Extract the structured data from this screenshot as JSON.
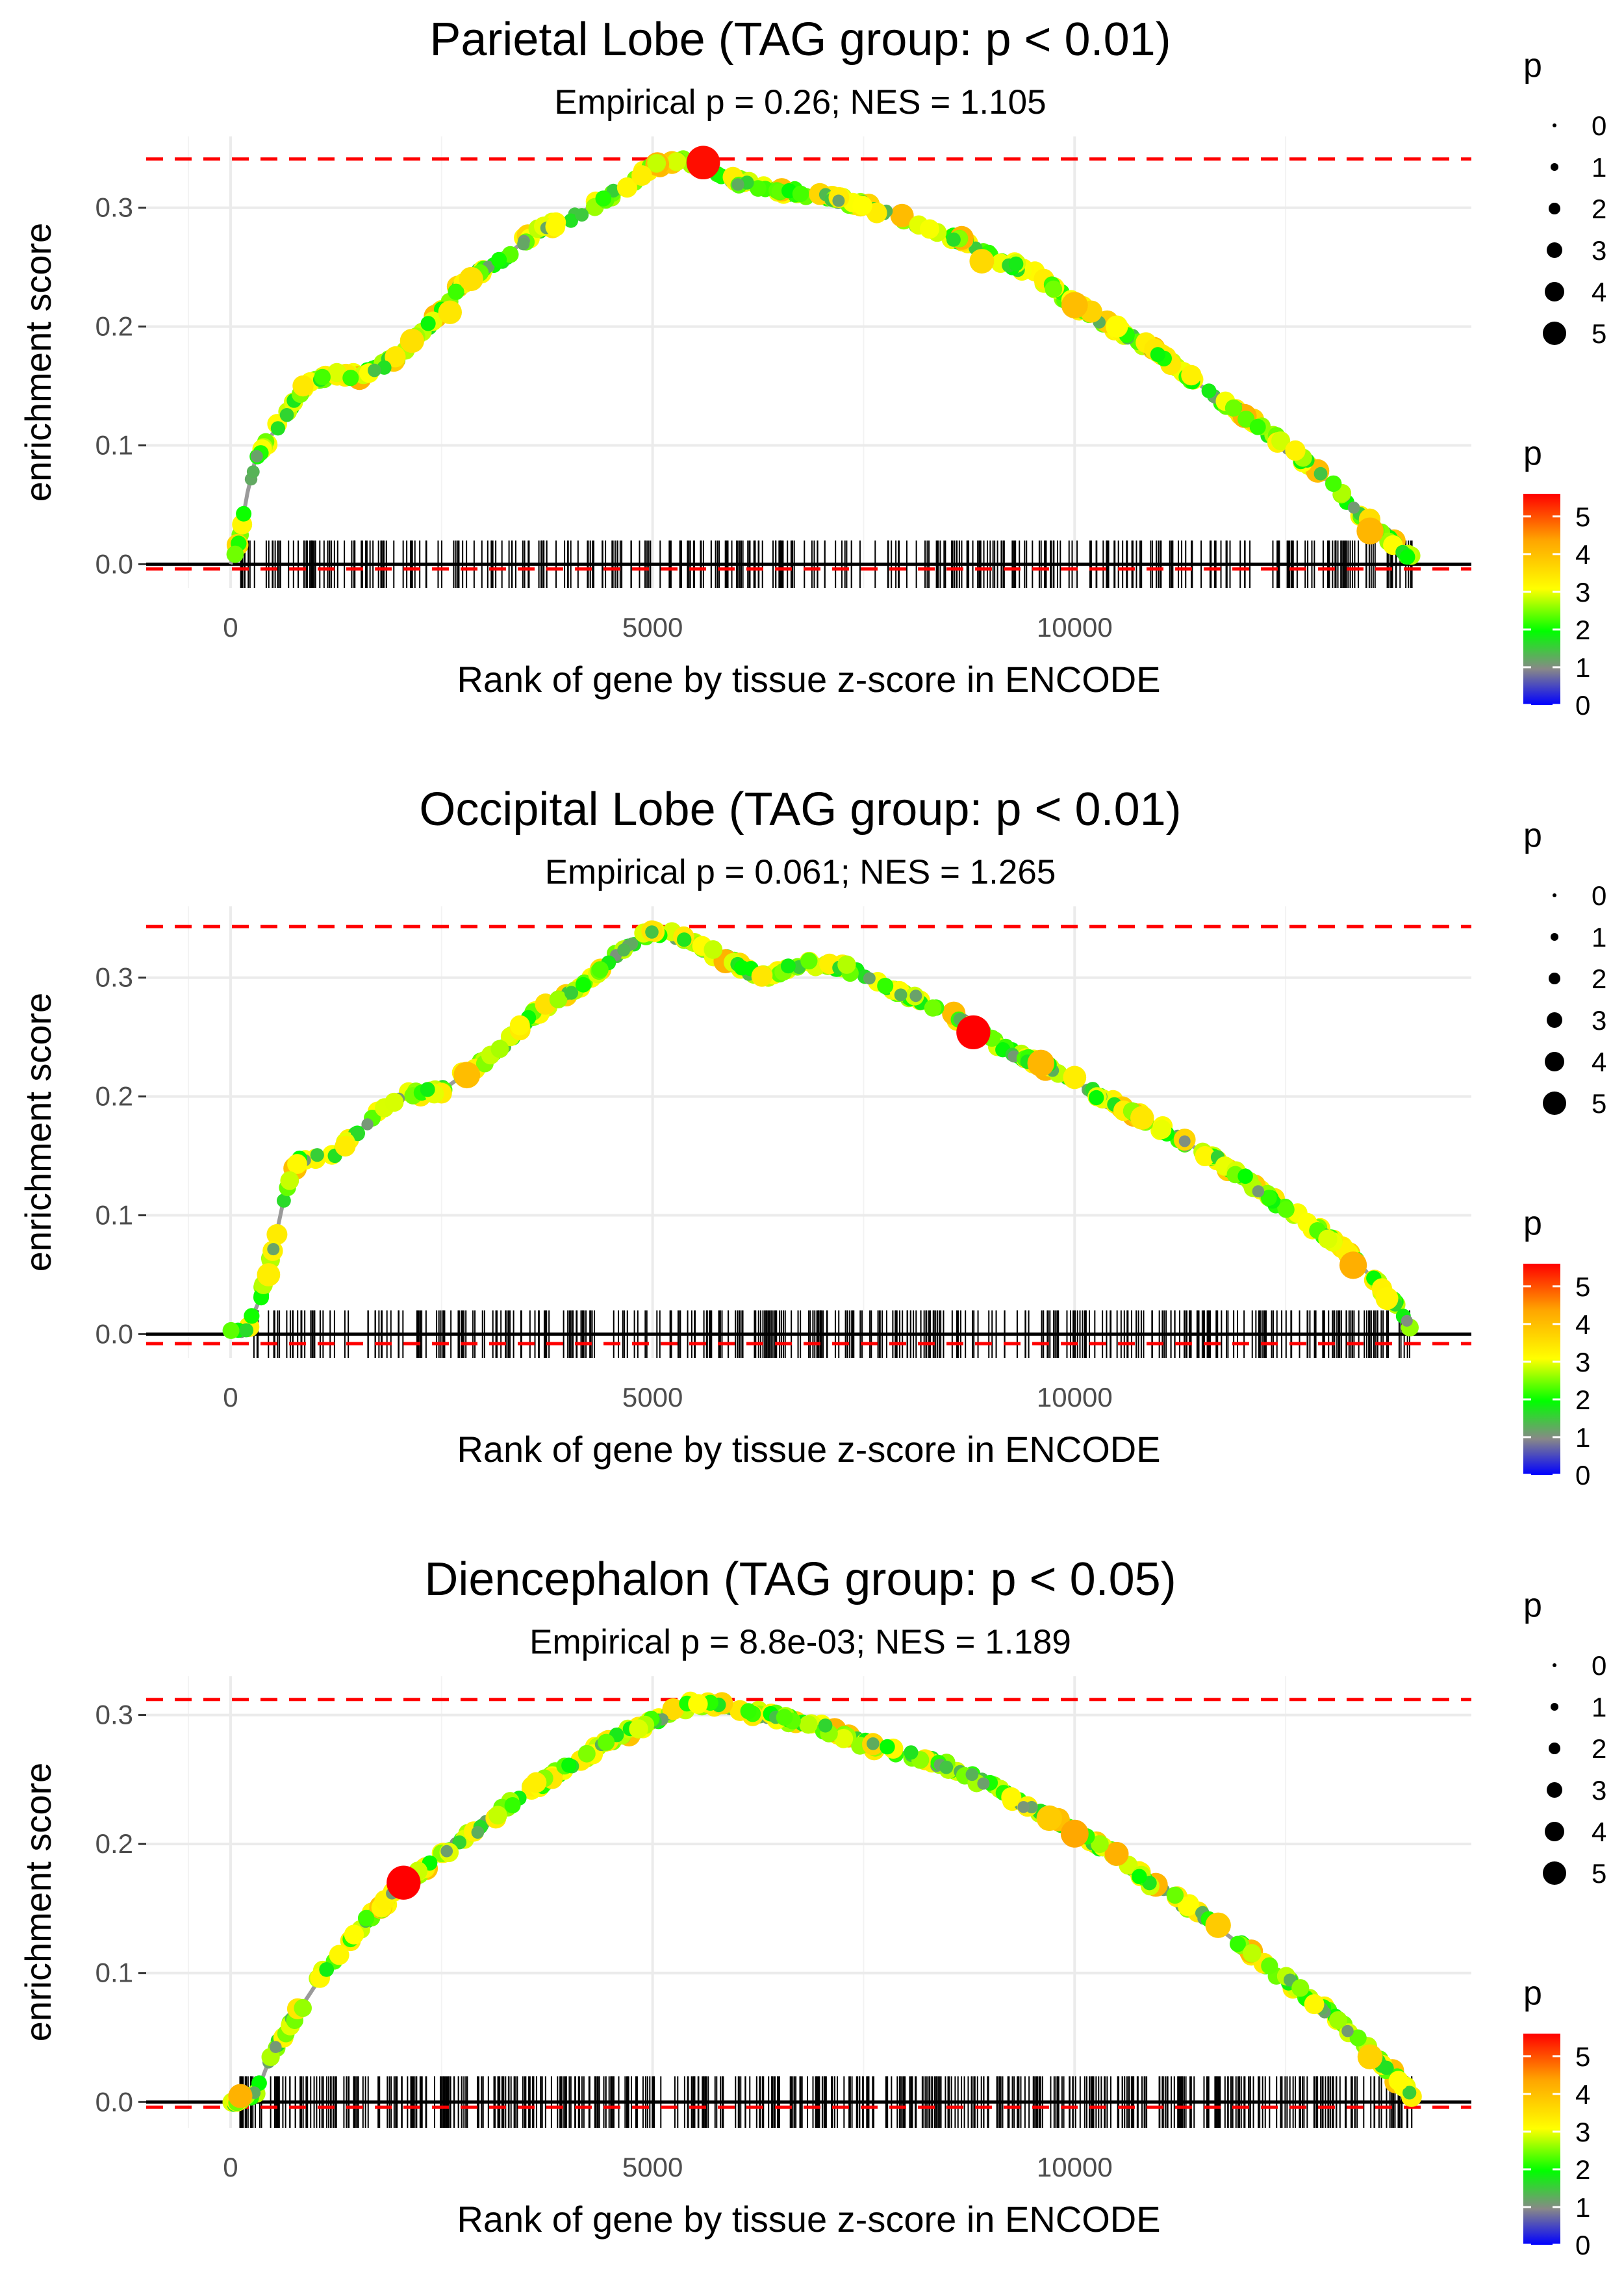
{
  "figure": {
    "x_axis_label": "Rank of gene by tissue z-score in ENCODE",
    "y_axis_label": "enrichment score",
    "legend_size_title": "p",
    "legend_color_title": "p",
    "legend_size_labels": [
      "0",
      "1",
      "2",
      "3",
      "4",
      "5"
    ],
    "legend_color_labels": [
      "5",
      "4",
      "3",
      "2",
      "1",
      "0"
    ]
  },
  "colors": {
    "threshold_line": "#ff0000",
    "zero_line": "#000000",
    "running_line": "#9a9a9a",
    "gradient": [
      "#0000ff",
      "#888888",
      "#00ff00",
      "#ffff00",
      "#ffa500",
      "#ff0000"
    ]
  },
  "chart_data": [
    {
      "type": "line",
      "title": "Parietal Lobe (TAG group: p < 0.01)",
      "subtitle": "Empirical p = 0.26; NES = 1.105",
      "xlabel": "Rank of gene by tissue z-score in ENCODE",
      "ylabel": "enrichment score",
      "xlim": [
        -1000,
        14700
      ],
      "ylim": [
        -0.02,
        0.36
      ],
      "xticks": [
        0,
        5000,
        10000
      ],
      "xtick_labels": [
        "0",
        "5000",
        "10000"
      ],
      "yticks": [
        0.0,
        0.1,
        0.2,
        0.3
      ],
      "ytick_labels": [
        "0.0",
        "0.1",
        "0.2",
        "0.3"
      ],
      "max_es": 0.341,
      "min_es": -0.004,
      "curve": [
        [
          0,
          0
        ],
        [
          100,
          0.02
        ],
        [
          200,
          0.06
        ],
        [
          300,
          0.09
        ],
        [
          500,
          0.11
        ],
        [
          700,
          0.13
        ],
        [
          900,
          0.152
        ],
        [
          1200,
          0.158
        ],
        [
          1600,
          0.16
        ],
        [
          2000,
          0.175
        ],
        [
          2400,
          0.205
        ],
        [
          2800,
          0.24
        ],
        [
          3200,
          0.255
        ],
        [
          3600,
          0.28
        ],
        [
          4000,
          0.29
        ],
        [
          4500,
          0.31
        ],
        [
          5000,
          0.335
        ],
        [
          5300,
          0.34
        ],
        [
          5600,
          0.336
        ],
        [
          6000,
          0.322
        ],
        [
          6500,
          0.315
        ],
        [
          7000,
          0.31
        ],
        [
          7500,
          0.302
        ],
        [
          8000,
          0.29
        ],
        [
          8500,
          0.278
        ],
        [
          9000,
          0.26
        ],
        [
          9500,
          0.245
        ],
        [
          10000,
          0.218
        ],
        [
          10500,
          0.198
        ],
        [
          11000,
          0.178
        ],
        [
          11500,
          0.15
        ],
        [
          12000,
          0.125
        ],
        [
          12500,
          0.1
        ],
        [
          13000,
          0.07
        ],
        [
          13500,
          0.035
        ],
        [
          14000,
          0.005
        ]
      ],
      "highlight_points": [
        [
          2150,
          0.188,
          3.5
        ],
        [
          2600,
          0.212,
          3.4
        ],
        [
          2850,
          0.24,
          3.5
        ],
        [
          5600,
          0.338,
          5.5
        ],
        [
          8900,
          0.255,
          3.6
        ],
        [
          10000,
          0.218,
          4.0
        ],
        [
          10500,
          0.2,
          3.1
        ],
        [
          13500,
          0.028,
          4.1
        ]
      ],
      "hits_range": [
        100,
        14000
      ],
      "hits_count": 380
    },
    {
      "type": "line",
      "title": "Occipital Lobe (TAG group: p < 0.01)",
      "subtitle": "Empirical p = 0.061; NES = 1.265",
      "xlabel": "Rank of gene by tissue z-score in ENCODE",
      "ylabel": "enrichment score",
      "xlim": [
        -1000,
        14700
      ],
      "ylim": [
        -0.02,
        0.36
      ],
      "xticks": [
        0,
        5000,
        10000
      ],
      "xtick_labels": [
        "0",
        "5000",
        "10000"
      ],
      "yticks": [
        0.0,
        0.1,
        0.2,
        0.3
      ],
      "ytick_labels": [
        "0.0",
        "0.1",
        "0.2",
        "0.3"
      ],
      "max_es": 0.343,
      "min_es": -0.008,
      "curve": [
        [
          0,
          0
        ],
        [
          200,
          0.005
        ],
        [
          350,
          0.03
        ],
        [
          500,
          0.07
        ],
        [
          650,
          0.12
        ],
        [
          800,
          0.145
        ],
        [
          1200,
          0.15
        ],
        [
          1500,
          0.17
        ],
        [
          2000,
          0.2
        ],
        [
          2500,
          0.205
        ],
        [
          2800,
          0.22
        ],
        [
          3200,
          0.24
        ],
        [
          3600,
          0.27
        ],
        [
          4000,
          0.285
        ],
        [
          4500,
          0.315
        ],
        [
          5000,
          0.34
        ],
        [
          5300,
          0.335
        ],
        [
          5800,
          0.318
        ],
        [
          6300,
          0.3
        ],
        [
          6800,
          0.312
        ],
        [
          7300,
          0.308
        ],
        [
          7800,
          0.29
        ],
        [
          8300,
          0.278
        ],
        [
          8800,
          0.258
        ],
        [
          9300,
          0.235
        ],
        [
          9800,
          0.222
        ],
        [
          10300,
          0.2
        ],
        [
          10800,
          0.182
        ],
        [
          11300,
          0.162
        ],
        [
          11800,
          0.142
        ],
        [
          12300,
          0.115
        ],
        [
          12800,
          0.092
        ],
        [
          13300,
          0.065
        ],
        [
          13800,
          0.025
        ],
        [
          14000,
          0.005
        ]
      ],
      "highlight_points": [
        [
          450,
          0.05,
          3.3
        ],
        [
          2800,
          0.218,
          4.0
        ],
        [
          8800,
          0.254,
          5.6
        ],
        [
          9600,
          0.228,
          4.1
        ],
        [
          10000,
          0.216,
          3.3
        ],
        [
          10800,
          0.182,
          3.4
        ],
        [
          13300,
          0.058,
          4.2
        ],
        [
          13700,
          0.03,
          3.2
        ]
      ],
      "hits_range": [
        250,
        14000
      ],
      "hits_count": 400
    },
    {
      "type": "line",
      "title": "Diencephalon (TAG group: p < 0.05)",
      "subtitle": "Empirical p = 8.8e-03; NES = 1.189",
      "xlabel": "Rank of gene by tissue z-score in ENCODE",
      "ylabel": "enrichment score",
      "xlim": [
        -1000,
        14700
      ],
      "ylim": [
        -0.02,
        0.33
      ],
      "xticks": [
        0,
        5000,
        10000
      ],
      "xtick_labels": [
        "0",
        "5000",
        "10000"
      ],
      "yticks": [
        0.0,
        0.1,
        0.2,
        0.3
      ],
      "ytick_labels": [
        "0.0",
        "0.1",
        "0.2",
        "0.3"
      ],
      "max_es": 0.312,
      "min_es": -0.004,
      "curve": [
        [
          0,
          0
        ],
        [
          300,
          0.005
        ],
        [
          500,
          0.04
        ],
        [
          800,
          0.07
        ],
        [
          1200,
          0.11
        ],
        [
          1600,
          0.14
        ],
        [
          2000,
          0.165
        ],
        [
          2500,
          0.19
        ],
        [
          3000,
          0.215
        ],
        [
          3500,
          0.24
        ],
        [
          4000,
          0.26
        ],
        [
          4500,
          0.28
        ],
        [
          5000,
          0.295
        ],
        [
          5500,
          0.31
        ],
        [
          6000,
          0.305
        ],
        [
          6500,
          0.298
        ],
        [
          7000,
          0.29
        ],
        [
          7500,
          0.278
        ],
        [
          8000,
          0.27
        ],
        [
          8500,
          0.26
        ],
        [
          9000,
          0.245
        ],
        [
          9500,
          0.228
        ],
        [
          10000,
          0.21
        ],
        [
          10500,
          0.19
        ],
        [
          11000,
          0.165
        ],
        [
          11500,
          0.145
        ],
        [
          12000,
          0.12
        ],
        [
          12500,
          0.095
        ],
        [
          13000,
          0.07
        ],
        [
          13500,
          0.04
        ],
        [
          14000,
          0.005
        ]
      ],
      "highlight_points": [
        [
          2050,
          0.17,
          5.6
        ],
        [
          9700,
          0.22,
          3.8
        ],
        [
          10000,
          0.208,
          4.3
        ],
        [
          11700,
          0.137,
          3.8
        ],
        [
          13500,
          0.035,
          3.7
        ]
      ],
      "hits_range": [
        100,
        14000
      ],
      "hits_count": 560
    }
  ]
}
